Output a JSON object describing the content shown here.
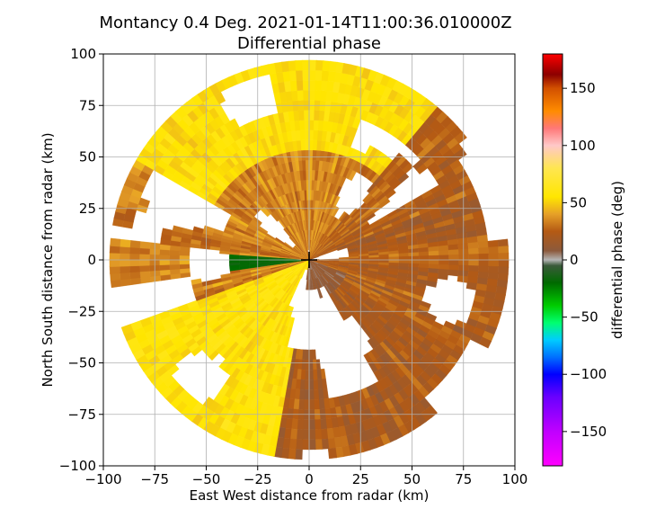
{
  "chart_data": {
    "type": "heatmap",
    "title_line1": "Montancy 0.4 Deg. 2021-01-14T11:00:36.010000Z",
    "title_line2": "Differential phase",
    "xlabel": "East West distance from radar (km)",
    "ylabel": "North South distance from radar (km)",
    "xlim": [
      -100,
      100
    ],
    "ylim": [
      -100,
      100
    ],
    "xticks": [
      -100,
      -75,
      -50,
      -25,
      0,
      25,
      50,
      75,
      100
    ],
    "yticks": [
      -100,
      -75,
      -50,
      -25,
      0,
      25,
      50,
      75,
      100
    ],
    "xtick_labels": [
      "−100",
      "−75",
      "−50",
      "−25",
      "0",
      "25",
      "50",
      "75",
      "100"
    ],
    "ytick_labels": [
      "−100",
      "−75",
      "−50",
      "−25",
      "0",
      "25",
      "50",
      "75",
      "100"
    ],
    "grid": true,
    "radar_range_km": 97,
    "radar_site_marker": "plus",
    "colorbar": {
      "label": "differential phase (deg)",
      "range": [
        -180,
        180
      ],
      "ticks": [
        -150,
        -100,
        -50,
        0,
        50,
        100,
        150
      ],
      "tick_labels": [
        "−150",
        "−100",
        "−50",
        "0",
        "50",
        "100",
        "150"
      ],
      "color_stops": [
        {
          "value": -180,
          "color": "#ff00ff"
        },
        {
          "value": -150,
          "color": "#c000ff"
        },
        {
          "value": -120,
          "color": "#6a00ff"
        },
        {
          "value": -100,
          "color": "#0000ff"
        },
        {
          "value": -85,
          "color": "#0070ff"
        },
        {
          "value": -70,
          "color": "#00ccff"
        },
        {
          "value": -55,
          "color": "#00ff70"
        },
        {
          "value": -40,
          "color": "#00cc00"
        },
        {
          "value": -20,
          "color": "#006a00"
        },
        {
          "value": -5,
          "color": "#3a5a3a"
        },
        {
          "value": 0,
          "color": "#b4b4b4"
        },
        {
          "value": 8,
          "color": "#8c5a3c"
        },
        {
          "value": 25,
          "color": "#b45a14"
        },
        {
          "value": 40,
          "color": "#e6a028"
        },
        {
          "value": 55,
          "color": "#ffe600"
        },
        {
          "value": 80,
          "color": "#ffe650"
        },
        {
          "value": 100,
          "color": "#ffc8c8"
        },
        {
          "value": 115,
          "color": "#ff7878"
        },
        {
          "value": 130,
          "color": "#ff8c00"
        },
        {
          "value": 150,
          "color": "#d25000"
        },
        {
          "value": 162,
          "color": "#8c0000"
        },
        {
          "value": 180,
          "color": "#ff0000"
        }
      ]
    }
  }
}
